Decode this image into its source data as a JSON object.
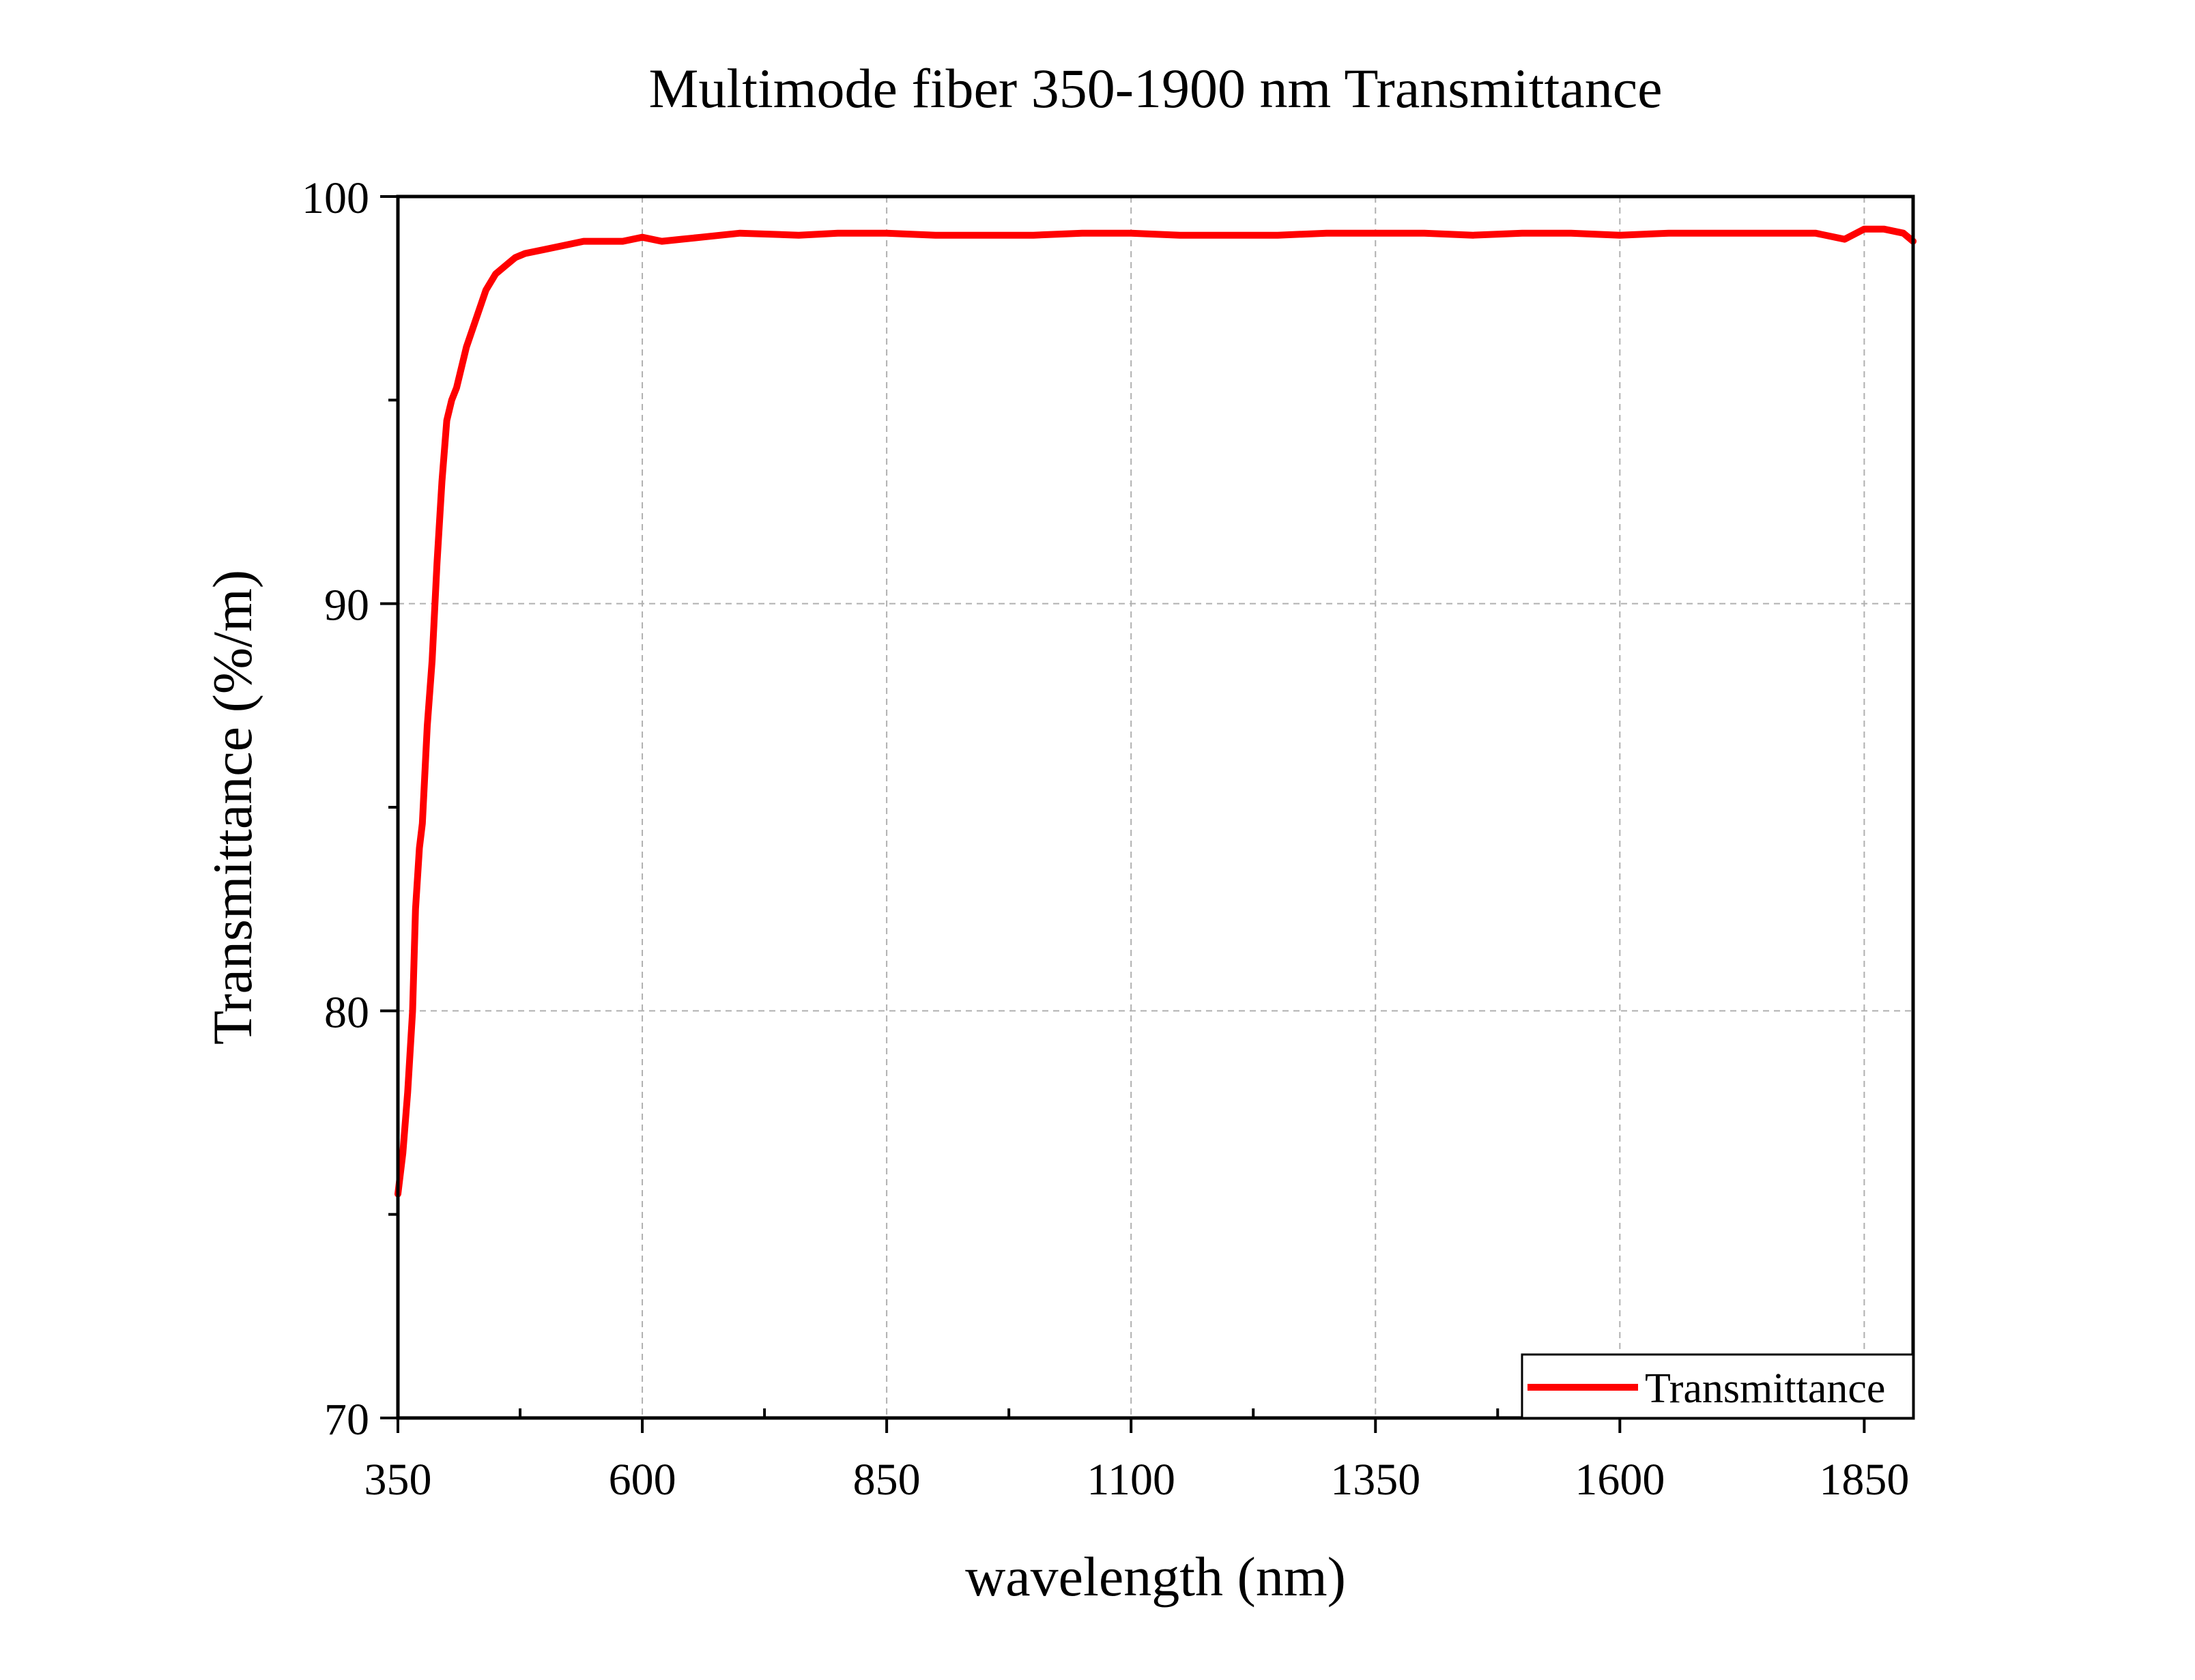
{
  "chart_data": {
    "type": "line",
    "title": "Multimode fiber 350-1900 nm Transmittance",
    "xlabel": "wavelength (nm)",
    "ylabel": "Transmittance (%/m)",
    "xlim": [
      350,
      1900
    ],
    "ylim": [
      70,
      100
    ],
    "x_ticks": [
      350,
      600,
      850,
      1100,
      1350,
      1600,
      1850
    ],
    "x_tick_labels": [
      "350",
      "600",
      "850",
      "1100",
      "1350",
      "1600",
      "1850"
    ],
    "y_ticks": [
      70,
      80,
      90,
      100
    ],
    "y_tick_labels": [
      "70",
      "80",
      "90",
      "100"
    ],
    "grid": true,
    "legend_position": "bottom-right",
    "series": [
      {
        "name": "Transmittance",
        "color": "#ff0000",
        "x": [
          350,
          355,
          360,
          365,
          368,
          372,
          375,
          380,
          385,
          390,
          395,
          400,
          405,
          410,
          420,
          430,
          440,
          450,
          460,
          470,
          480,
          500,
          520,
          540,
          560,
          580,
          600,
          620,
          640,
          660,
          700,
          760,
          800,
          850,
          900,
          950,
          1000,
          1050,
          1100,
          1150,
          1200,
          1250,
          1300,
          1350,
          1400,
          1450,
          1500,
          1550,
          1600,
          1650,
          1700,
          1750,
          1800,
          1830,
          1850,
          1870,
          1890,
          1900
        ],
        "y": [
          75.5,
          76.5,
          78.0,
          80.0,
          82.5,
          84.0,
          84.6,
          87.0,
          88.6,
          91.0,
          93.0,
          94.5,
          95.0,
          95.3,
          96.3,
          97.0,
          97.7,
          98.1,
          98.3,
          98.5,
          98.6,
          98.7,
          98.8,
          98.9,
          98.9,
          98.9,
          99.0,
          98.9,
          98.95,
          99.0,
          99.1,
          99.05,
          99.1,
          99.1,
          99.05,
          99.05,
          99.05,
          99.1,
          99.1,
          99.05,
          99.05,
          99.05,
          99.1,
          99.1,
          99.1,
          99.05,
          99.1,
          99.1,
          99.05,
          99.1,
          99.1,
          99.1,
          99.1,
          98.95,
          99.2,
          99.2,
          99.1,
          98.9
        ]
      }
    ]
  }
}
